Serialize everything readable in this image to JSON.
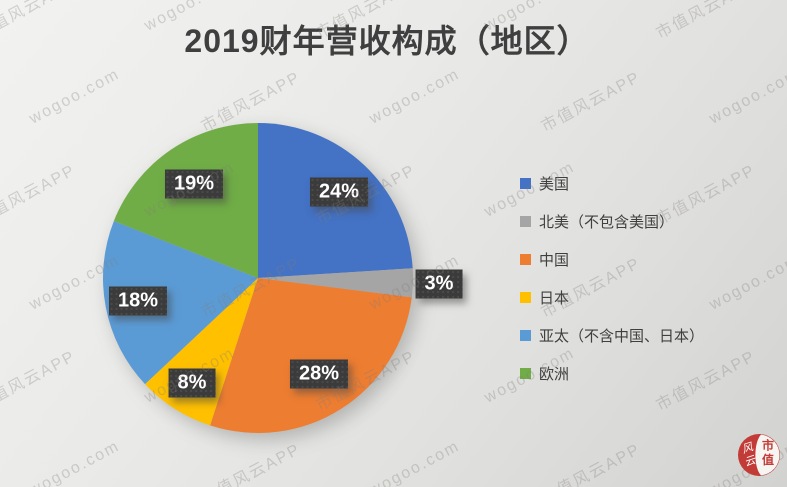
{
  "title": "2019财年营收构成（地区）",
  "chart_data": {
    "type": "pie",
    "title": "2019财年营收构成（地区）",
    "start_angle_deg": 0,
    "direction": "clockwise",
    "legend_position": "right",
    "value_suffix": "%",
    "center": [
      258,
      278
    ],
    "radius": 155,
    "slices": [
      {
        "label": "美国",
        "value": 24,
        "color": "#4472C4",
        "label_radius": 0.76
      },
      {
        "label": "北美（不包含美国）",
        "value": 3,
        "color": "#A5A5A5",
        "label_radius": 1.17
      },
      {
        "label": "中国",
        "value": 28,
        "color": "#ED7D31",
        "label_radius": 0.73
      },
      {
        "label": "日本",
        "value": 8,
        "color": "#FFC000",
        "label_radius": 0.8
      },
      {
        "label": "亚太（不含中国、日本）",
        "value": 18,
        "color": "#5B9BD5",
        "label_radius": 0.79
      },
      {
        "label": "欧洲",
        "value": 19,
        "color": "#70AD47",
        "label_radius": 0.73
      }
    ]
  },
  "watermark": {
    "texts": [
      "市值风云APP",
      "wogoo.com"
    ]
  },
  "logo": {
    "right_top": "市",
    "right_bottom": "值",
    "left_top": "风",
    "left_bottom": "云",
    "red": "#c23b37",
    "white": "#f7f5f2"
  }
}
